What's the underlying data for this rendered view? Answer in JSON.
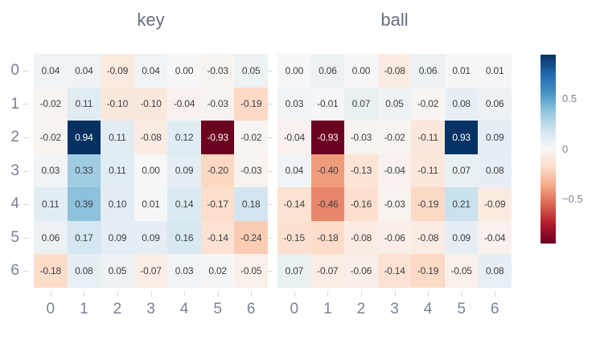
{
  "chart_data": {
    "type": "heatmap",
    "panels": [
      {
        "title": "key",
        "values": [
          [
            0.04,
            0.04,
            -0.09,
            0.04,
            0.0,
            -0.03,
            0.05
          ],
          [
            -0.02,
            0.11,
            -0.1,
            -0.1,
            -0.04,
            -0.03,
            -0.19
          ],
          [
            -0.02,
            0.94,
            0.11,
            -0.08,
            0.12,
            -0.93,
            -0.02
          ],
          [
            0.03,
            0.33,
            0.11,
            0.0,
            0.09,
            -0.2,
            -0.03
          ],
          [
            0.11,
            0.39,
            0.1,
            0.01,
            0.14,
            -0.17,
            0.18
          ],
          [
            0.06,
            0.17,
            0.09,
            0.09,
            0.16,
            -0.14,
            -0.24
          ],
          [
            -0.18,
            0.08,
            0.05,
            -0.07,
            0.03,
            0.02,
            -0.05
          ]
        ]
      },
      {
        "title": "ball",
        "values": [
          [
            0.0,
            0.06,
            0.0,
            -0.08,
            0.06,
            0.01,
            0.01
          ],
          [
            0.03,
            -0.01,
            0.07,
            0.05,
            -0.02,
            0.08,
            0.06
          ],
          [
            -0.04,
            -0.93,
            -0.03,
            -0.02,
            -0.11,
            0.93,
            0.09
          ],
          [
            0.04,
            -0.4,
            -0.13,
            -0.04,
            -0.11,
            0.07,
            0.08
          ],
          [
            -0.14,
            -0.46,
            -0.16,
            -0.03,
            -0.19,
            0.21,
            -0.09
          ],
          [
            -0.15,
            -0.18,
            -0.08,
            -0.06,
            -0.08,
            0.09,
            -0.04
          ],
          [
            0.07,
            -0.07,
            -0.06,
            -0.14,
            -0.19,
            -0.05,
            0.08
          ]
        ]
      }
    ],
    "row_labels": [
      "0",
      "1",
      "2",
      "3",
      "4",
      "5",
      "6"
    ],
    "col_labels": [
      "0",
      "1",
      "2",
      "3",
      "4",
      "5",
      "6"
    ],
    "value_decimals": 2,
    "vmin": -0.94,
    "vmax": 0.94,
    "colorscale_name": "RdBu",
    "colorscale": [
      {
        "pos": 0.0,
        "color": "#67001f"
      },
      {
        "pos": 0.1,
        "color": "#b2182b"
      },
      {
        "pos": 0.2,
        "color": "#d6604d"
      },
      {
        "pos": 0.3,
        "color": "#f4a582"
      },
      {
        "pos": 0.4,
        "color": "#fddbc7"
      },
      {
        "pos": 0.5,
        "color": "#f7f7f7"
      },
      {
        "pos": 0.6,
        "color": "#d1e5f0"
      },
      {
        "pos": 0.7,
        "color": "#92c5de"
      },
      {
        "pos": 0.8,
        "color": "#4393c3"
      },
      {
        "pos": 0.9,
        "color": "#2166ac"
      },
      {
        "pos": 1.0,
        "color": "#053061"
      }
    ],
    "colorbar_ticks": [
      {
        "label": "0.5",
        "value": 0.5
      },
      {
        "label": "0",
        "value": 0
      },
      {
        "label": "−0.5",
        "value": -0.5
      }
    ],
    "legend_position": "right",
    "grid": false
  },
  "colors": {
    "background": "#ffffff",
    "title_text": "#676e82",
    "tick_text": "#7b8194",
    "cell_text_dark": "#3f3f3f",
    "cell_text_light": "#ffffff",
    "tick_mark": "#d5d8df"
  }
}
